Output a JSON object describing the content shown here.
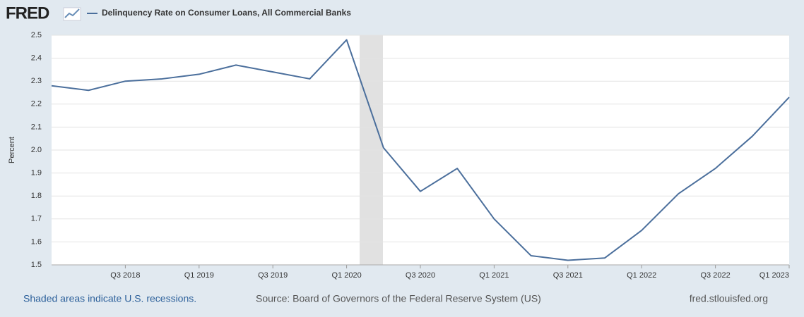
{
  "chart_data": {
    "type": "line",
    "logo": "FRED",
    "title": "Delinquency Rate on Consumer Loans, All Commercial Banks",
    "y_label": "Percent",
    "note": "Shaded areas indicate U.S. recessions.",
    "source": "Source: Board of Governors of the Federal Reserve System (US)",
    "site": "fred.stlouisfed.org",
    "categories": [
      null,
      null,
      "Q3 2018",
      null,
      "Q1 2019",
      null,
      "Q3 2019",
      null,
      "Q1 2020",
      null,
      "Q3 2020",
      null,
      "Q1 2021",
      null,
      "Q3 2021",
      null,
      "Q1 2022",
      null,
      "Q3 2022",
      null,
      "Q1 2023"
    ],
    "series": [
      {
        "name": "Delinquency Rate on Consumer Loans, All Commercial Banks",
        "color": "#4b6f9c",
        "values": [
          2.28,
          2.26,
          2.3,
          2.31,
          2.33,
          2.37,
          2.34,
          2.31,
          2.48,
          2.01,
          1.82,
          1.92,
          1.7,
          1.54,
          1.52,
          1.53,
          1.65,
          1.81,
          1.92,
          2.06,
          2.23
        ]
      }
    ],
    "ylim": [
      1.5,
      2.5
    ],
    "yticks": [
      1.5,
      1.6,
      1.7,
      1.8,
      1.9,
      {
        "value": 2,
        "label": "2.0"
      },
      2.1,
      2.2,
      2.3,
      2.4,
      2.5
    ],
    "grid": true
  }
}
